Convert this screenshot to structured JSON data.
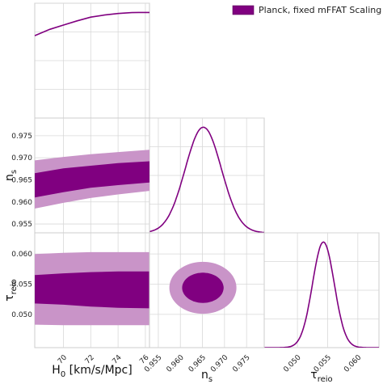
{
  "chart_data": {
    "type": "corner",
    "legend": {
      "label": "Planck, fixed mFFAT Scaling",
      "placement": "top-right"
    },
    "colors": {
      "line": "#800080",
      "outer": "#c994c8",
      "inner": "#800080"
    },
    "parameters": [
      {
        "key": "H0",
        "label_main": "H",
        "label_sub": "0",
        "label_rest": " [km/s/Mpc]",
        "range": [
          67.9,
          76.3
        ],
        "ticks": [
          70,
          72,
          74,
          76
        ]
      },
      {
        "key": "ns",
        "label_main": "n",
        "label_sub": "s",
        "label_rest": "",
        "range": [
          0.953,
          0.979
        ],
        "ticks": [
          0.955,
          0.96,
          0.965,
          0.97,
          0.975
        ]
      },
      {
        "key": "tau",
        "label_main": "τ",
        "label_sub": "reio",
        "label_rest": "",
        "range": [
          0.0445,
          0.0635
        ],
        "ticks": [
          0.05,
          0.055,
          0.06
        ]
      }
    ],
    "marginals": {
      "H0": {
        "type": "curve",
        "x": [
          67.9,
          69,
          70,
          71,
          72,
          73,
          74,
          75,
          75.5,
          76,
          76.3
        ],
        "y": [
          0.78,
          0.84,
          0.88,
          0.92,
          0.955,
          0.975,
          0.99,
          0.998,
          1.0,
          1.0,
          1.0
        ]
      },
      "ns": {
        "type": "gaussian",
        "mean": 0.9652,
        "sigma": 0.0041
      },
      "tau": {
        "type": "gaussian",
        "mean": 0.0543,
        "sigma": 0.0018
      }
    },
    "contours": {
      "H0_ns": {
        "x": [
          67.9,
          70,
          72,
          74,
          76.3
        ],
        "outer_upper": [
          0.9694,
          0.9702,
          0.9708,
          0.9713,
          0.9718
        ],
        "outer_lower": [
          0.9585,
          0.9598,
          0.9609,
          0.9617,
          0.9625
        ],
        "inner_upper": [
          0.9665,
          0.9676,
          0.9682,
          0.9688,
          0.9692
        ],
        "inner_lower": [
          0.961,
          0.9622,
          0.9632,
          0.9638,
          0.9644
        ]
      },
      "H0_tau": {
        "x": [
          67.9,
          70,
          72,
          74,
          76.3
        ],
        "outer_upper": [
          0.06,
          0.0602,
          0.0603,
          0.0603,
          0.0603
        ],
        "outer_lower": [
          0.0483,
          0.0482,
          0.0482,
          0.0482,
          0.0482
        ],
        "inner_upper": [
          0.0565,
          0.0568,
          0.057,
          0.0571,
          0.0571
        ],
        "inner_lower": [
          0.0518,
          0.0516,
          0.0513,
          0.0511,
          0.051
        ]
      },
      "ns_tau": {
        "center": [
          0.9651,
          0.0544
        ],
        "outer_radii": [
          0.0076,
          0.0043
        ],
        "inner_radii": [
          0.0047,
          0.0025
        ]
      }
    },
    "tick_labels": {
      "H0": [
        "70",
        "72",
        "74",
        "76"
      ],
      "ns": [
        "0.955",
        "0.960",
        "0.965",
        "0.970",
        "0.975"
      ],
      "tau": [
        "0.050",
        "0.055",
        "0.060"
      ]
    }
  }
}
